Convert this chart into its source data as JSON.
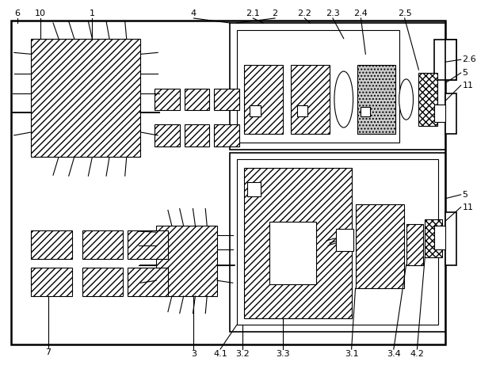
{
  "fig_width": 6.02,
  "fig_height": 4.66,
  "dpi": 100,
  "bg_color": "#ffffff",
  "lc": "#000000",
  "lw_thin": 0.8,
  "lw_med": 1.2,
  "lw_thick": 1.8
}
